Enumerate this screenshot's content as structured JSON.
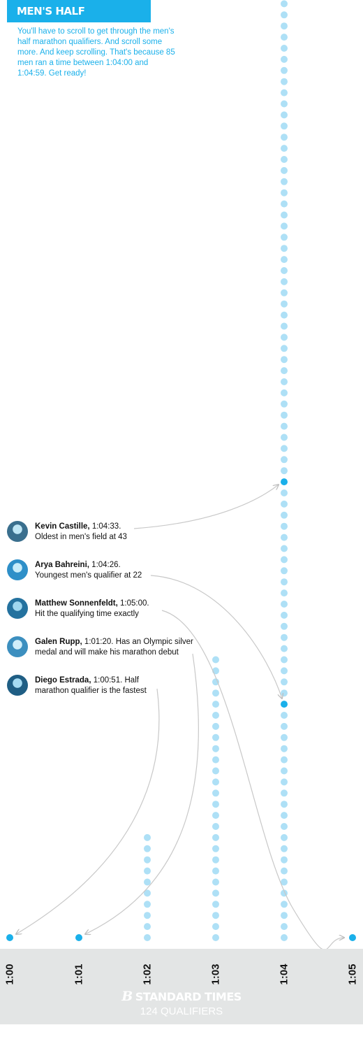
{
  "header": {
    "badge": "MEN'S HALF MARATHON",
    "intro": "You'll have to scroll to get through the men's half marathon qualifiers. And scroll some more. And keep scrolling. That's because 85 men ran a time between 1:04:00 and 1:04:59. Get ready!"
  },
  "colors": {
    "accent": "#1ab0ea",
    "dot": "#aee0f6",
    "highlight_dot": "#1ab0ea",
    "arrow": "#c8c8c8",
    "axis_band": "#e3e5e5"
  },
  "chart_data": {
    "type": "scatter",
    "unit": "qualifiers per minute bucket (dot plot)",
    "categories": [
      "1:00",
      "1:01",
      "1:02",
      "1:03",
      "1:04",
      "1:05"
    ],
    "counts": [
      1,
      1,
      10,
      26,
      85,
      1
    ],
    "highlighted": [
      {
        "minute": "1:00",
        "index": 0
      },
      {
        "minute": "1:01",
        "index": 0
      },
      {
        "minute": "1:04",
        "index": 21
      },
      {
        "minute": "1:04",
        "index": 41
      },
      {
        "minute": "1:05",
        "index": 0
      }
    ],
    "annotations": [
      {
        "name": "Kevin Castille,",
        "time": "1:04:33.",
        "line1": "",
        "line2": "Oldest in men's field at 43",
        "target": {
          "minute": "1:04",
          "index": 41
        }
      },
      {
        "name": "Arya Bahreini,",
        "time": "1:04:26.",
        "line1": "",
        "line2": "Youngest men's qualifier at 22",
        "target": {
          "minute": "1:04",
          "index": 21
        }
      },
      {
        "name": "Matthew Sonnenfeldt,",
        "time": "1:05:00.",
        "line1": "",
        "line2": "Hit the qualifying time exactly",
        "target": {
          "minute": "1:05",
          "index": 0
        }
      },
      {
        "name": "Galen Rupp,",
        "time": "1:01:20.",
        "line1": "Has an Olympic silver",
        "line2": "medal and will make his marathon debut",
        "target": {
          "minute": "1:01",
          "index": 0
        }
      },
      {
        "name": "Diego Estrada,",
        "time": "1:00:51.",
        "line1": "Half",
        "line2": "marathon qualifier is the fastest",
        "target": {
          "minute": "1:00",
          "index": 0
        }
      }
    ]
  },
  "footer": {
    "logo": "B",
    "title": "STANDARD TIMES",
    "subtitle": "124 QUALIFIERS"
  }
}
